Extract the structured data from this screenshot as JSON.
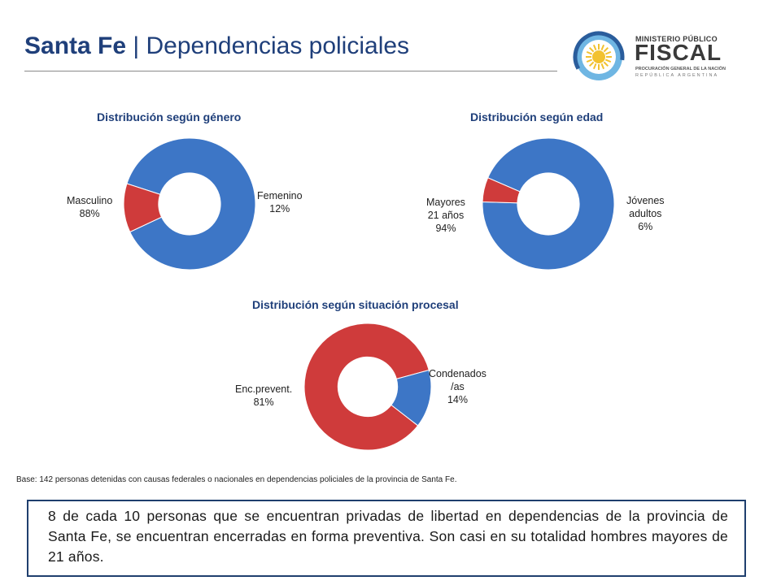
{
  "header": {
    "title_bold": "Santa Fe",
    "title_rest": " | Dependencias policiales"
  },
  "logo": {
    "line1": "MINISTERIO PÚBLICO",
    "line2": "FISCAL",
    "line3": "PROCURACIÓN GENERAL DE LA NACIÓN",
    "line4": "REPÚBLICA ARGENTINA",
    "icon": "sun-emblem-icon"
  },
  "chart_data": [
    {
      "type": "pie",
      "title": "Distribución según género",
      "donut": true,
      "slices": [
        {
          "label": "Masculino",
          "value": 88,
          "display": "88%",
          "color": "#3d76c6"
        },
        {
          "label": "Femenino",
          "value": 12,
          "display": "12%",
          "color": "#cf3b3b"
        }
      ]
    },
    {
      "type": "pie",
      "title": "Distribución según edad",
      "donut": true,
      "slices": [
        {
          "label": "Mayores 21 años",
          "value": 94,
          "display": "94%",
          "color": "#3d76c6"
        },
        {
          "label": "Jóvenes adultos",
          "value": 6,
          "display": "6%",
          "color": "#cf3b3b"
        }
      ]
    },
    {
      "type": "pie",
      "title": "Distribución según situación procesal",
      "donut": true,
      "slices": [
        {
          "label": "Enc.prevent.",
          "value": 81,
          "display": "81%",
          "color": "#cf3b3b"
        },
        {
          "label": "Condenados /as",
          "value": 14,
          "display": "14%",
          "color": "#3d76c6"
        }
      ]
    }
  ],
  "labels": {
    "masc_name": "Masculino",
    "masc_pct": "88%",
    "fem_name": "Femenino",
    "fem_pct": "12%",
    "may_l1": "Mayores",
    "may_l2": "21 años",
    "may_pct": "94%",
    "jov_l1": "Jóvenes",
    "jov_l2": "adultos",
    "jov_pct": "6%",
    "enc_name": "Enc.prevent.",
    "enc_pct": "81%",
    "cond_l1": "Condenados",
    "cond_l2": "/as",
    "cond_pct": "14%"
  },
  "footer": {
    "base_note": "Base: 142 personas detenidas con causas federales o nacionales en dependencias policiales de la provincia de Santa Fe.",
    "summary": "8 de cada 10 personas que se encuentran privadas de libertad en dependencias de la provincia de Santa Fe, se encuentran encerradas en forma preventiva. Son casi en su totalidad hombres mayores de 21 años."
  }
}
